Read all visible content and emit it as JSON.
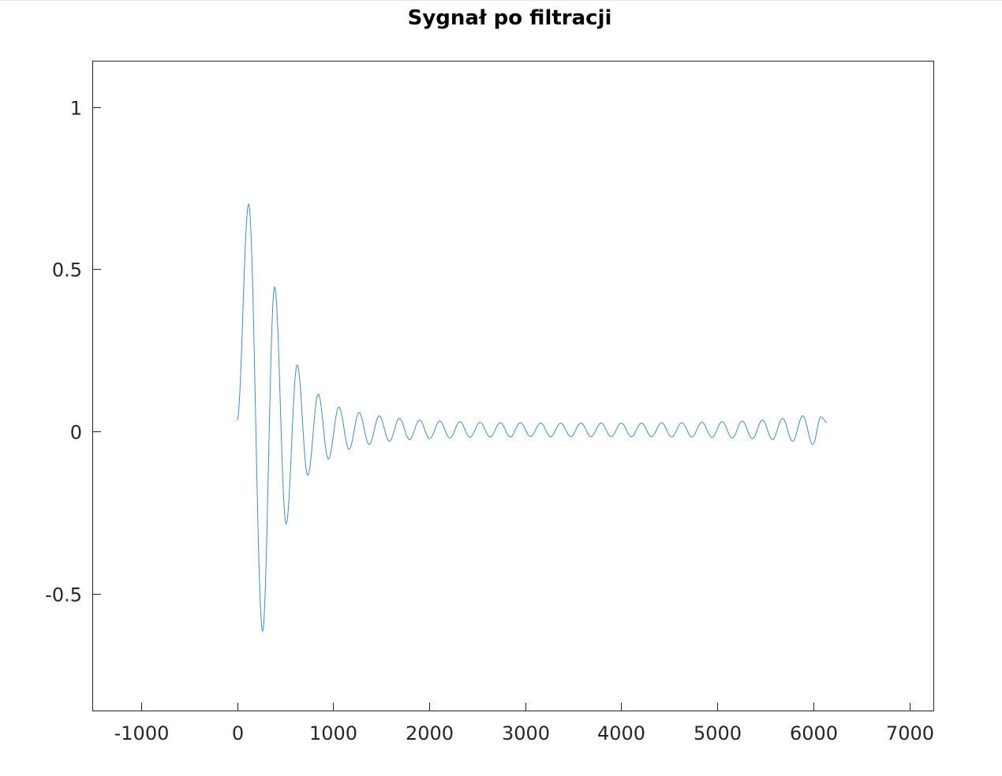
{
  "chart_data": {
    "type": "line",
    "title": "Sygnał po filtracji",
    "xlabel": "",
    "ylabel": "",
    "xlim": [
      -1500,
      7250
    ],
    "ylim": [
      -0.86,
      1.14
    ],
    "x_ticks": [
      -1000,
      0,
      1000,
      2000,
      3000,
      4000,
      5000,
      6000,
      7000
    ],
    "x_tick_labels": [
      "-1000",
      "0",
      "1000",
      "2000",
      "3000",
      "4000",
      "5000",
      "6000",
      "7000"
    ],
    "y_ticks": [
      1,
      0.5,
      0,
      -0.5
    ],
    "y_tick_labels": [
      "1",
      "0.5",
      "0",
      "-0.5"
    ],
    "grid": false,
    "series": [
      {
        "color": "#3a8fd1",
        "period": 210,
        "x_start": 0,
        "x_end": 6140,
        "points": [
          [
            0,
            0.035
          ],
          [
            120,
            0.7
          ],
          [
            265,
            -0.615
          ],
          [
            390,
            0.445
          ],
          [
            510,
            -0.285
          ],
          [
            625,
            0.205
          ],
          [
            735,
            -0.135
          ],
          [
            845,
            0.115
          ],
          [
            950,
            -0.085
          ],
          [
            1060,
            0.075
          ],
          [
            1165,
            -0.055
          ],
          [
            1270,
            0.058
          ],
          [
            1375,
            -0.04
          ],
          [
            1480,
            0.048
          ],
          [
            1585,
            -0.03
          ],
          [
            1690,
            0.04
          ],
          [
            1795,
            -0.025
          ],
          [
            1900,
            0.035
          ],
          [
            2005,
            -0.022
          ],
          [
            2110,
            0.032
          ],
          [
            2215,
            -0.02
          ],
          [
            2320,
            0.03
          ],
          [
            2425,
            -0.018
          ],
          [
            2530,
            0.028
          ],
          [
            2635,
            -0.017
          ],
          [
            2740,
            0.027
          ],
          [
            2845,
            -0.017
          ],
          [
            2950,
            0.027
          ],
          [
            3055,
            -0.016
          ],
          [
            3160,
            0.026
          ],
          [
            3265,
            -0.016
          ],
          [
            3370,
            0.026
          ],
          [
            3475,
            -0.016
          ],
          [
            3580,
            0.026
          ],
          [
            3685,
            -0.016
          ],
          [
            3790,
            0.026
          ],
          [
            3895,
            -0.016
          ],
          [
            4000,
            0.026
          ],
          [
            4105,
            -0.016
          ],
          [
            4210,
            0.026
          ],
          [
            4315,
            -0.016
          ],
          [
            4420,
            0.027
          ],
          [
            4525,
            -0.017
          ],
          [
            4630,
            0.027
          ],
          [
            4735,
            -0.017
          ],
          [
            4840,
            0.028
          ],
          [
            4945,
            -0.018
          ],
          [
            5050,
            0.03
          ],
          [
            5155,
            -0.02
          ],
          [
            5260,
            0.032
          ],
          [
            5365,
            -0.022
          ],
          [
            5470,
            0.035
          ],
          [
            5575,
            -0.025
          ],
          [
            5680,
            0.04
          ],
          [
            5785,
            -0.03
          ],
          [
            5890,
            0.048
          ],
          [
            5995,
            -0.04
          ],
          [
            6080,
            0.045
          ],
          [
            6140,
            0.028
          ]
        ]
      }
    ]
  }
}
